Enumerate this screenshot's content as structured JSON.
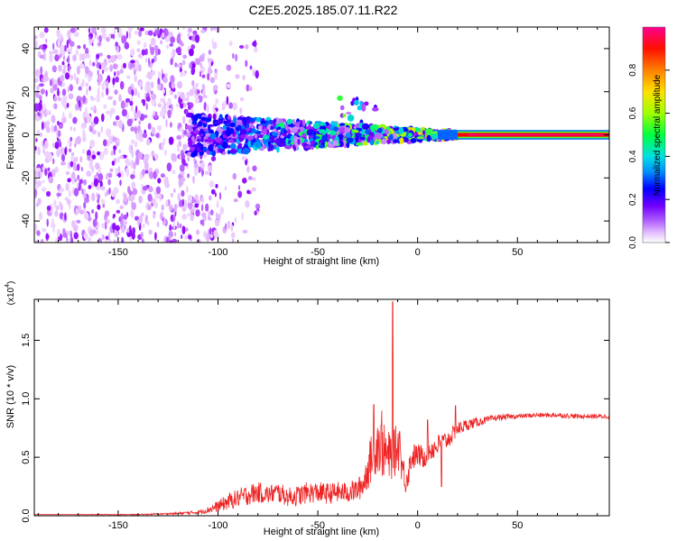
{
  "figure": {
    "title": "C2E5.2025.185.07.11.R22"
  },
  "colors": {
    "snr_line": "#ee2222",
    "axes": "#000000",
    "background": "#ffffff"
  },
  "chart_data": [
    {
      "type": "heatmap",
      "title": "",
      "xlabel": "Height of straight line (km)",
      "ylabel": "Frequency (Hz)",
      "xlim": [
        -192,
        96
      ],
      "ylim": [
        -50,
        50
      ],
      "x_ticks": [
        -150,
        -100,
        -50,
        0,
        50
      ],
      "y_ticks": [
        -40,
        -20,
        0,
        20,
        40
      ],
      "colorbar": {
        "label": "Normalized spectral amplitude",
        "range": [
          0,
          1
        ],
        "ticks": [
          "0.0",
          "0.2",
          "0.4",
          "0.6",
          "0.8"
        ],
        "colormap": [
          "#ffffff",
          "#e0b0ff",
          "#8a00ff",
          "#0000ff",
          "#00c8ff",
          "#00ff60",
          "#a0ff00",
          "#ffe000",
          "#ff7000",
          "#ff0000",
          "#ff0090"
        ]
      },
      "description_values": {
        "noise_region_x": [
          -192,
          -105
        ],
        "signal_centre_frequency_hz": 0,
        "coherent_tone_start_x": 20,
        "coherent_tone_amplitude": 1.0
      }
    },
    {
      "type": "line",
      "title": "",
      "xlabel": "Height of straight line (km)",
      "ylabel": "SNR (10 * v/v)",
      "y_multiplier": "(x10",
      "y_multiplier_exp": "4",
      "xlim": [
        -192,
        96
      ],
      "ylim": [
        0,
        1.85
      ],
      "x_ticks": [
        -150,
        -100,
        -50,
        0,
        50
      ],
      "y_ticks": [
        0.0,
        0.5,
        1.0,
        1.5
      ],
      "y_tick_labels": [
        "0.0",
        "0.5",
        "1.0",
        "1.5"
      ],
      "series": [
        {
          "x": [
            -192,
            -180,
            -160,
            -140,
            -120,
            -110,
            -105,
            -100,
            -95,
            -90,
            -85,
            -80,
            -75,
            -70,
            -65,
            -60,
            -55,
            -50,
            -45,
            -40,
            -35,
            -30,
            -27,
            -25,
            -22,
            -20,
            -18,
            -15,
            -12,
            -10,
            -8,
            -6,
            -5,
            -3,
            0,
            3,
            5,
            8,
            10,
            12,
            15,
            18,
            20,
            25,
            30,
            35,
            40,
            50,
            60,
            70,
            80,
            90,
            96
          ],
          "y": [
            0.01,
            0.01,
            0.01,
            0.01,
            0.02,
            0.03,
            0.05,
            0.08,
            0.12,
            0.15,
            0.18,
            0.2,
            0.18,
            0.2,
            0.16,
            0.17,
            0.2,
            0.2,
            0.19,
            0.2,
            0.2,
            0.22,
            0.28,
            0.4,
            0.55,
            0.62,
            0.58,
            0.5,
            0.52,
            0.6,
            0.45,
            0.3,
            0.35,
            0.5,
            0.52,
            0.5,
            0.55,
            0.58,
            0.6,
            0.62,
            0.65,
            0.7,
            0.74,
            0.78,
            0.8,
            0.82,
            0.84,
            0.85,
            0.86,
            0.86,
            0.85,
            0.85,
            0.85
          ],
          "noise": [
            0,
            0,
            0.003,
            0.004,
            0.01,
            0.015,
            0.03,
            0.05,
            0.07,
            0.08,
            0.09,
            0.09,
            0.08,
            0.09,
            0.08,
            0.09,
            0.09,
            0.09,
            0.09,
            0.09,
            0.09,
            0.1,
            0.12,
            0.18,
            0.22,
            0.25,
            0.25,
            0.22,
            0.22,
            0.2,
            0.15,
            0.12,
            0.12,
            0.12,
            0.1,
            0.1,
            0.1,
            0.1,
            0.1,
            0.09,
            0.08,
            0.07,
            0.06,
            0.05,
            0.04,
            0.03,
            0.025,
            0.02,
            0.02,
            0.02,
            0.02,
            0.02,
            0.02
          ],
          "spikes": [
            {
              "x": -12.5,
              "y": 1.83
            },
            {
              "x": -22,
              "y": 0.95
            },
            {
              "x": -18,
              "y": 0.9
            },
            {
              "x": -20,
              "y": 0.75
            },
            {
              "x": -9,
              "y": 0.72
            },
            {
              "x": 12,
              "y": 0.25
            },
            {
              "x": 19,
              "y": 0.94
            },
            {
              "x": 5,
              "y": 0.82
            }
          ]
        }
      ]
    }
  ]
}
